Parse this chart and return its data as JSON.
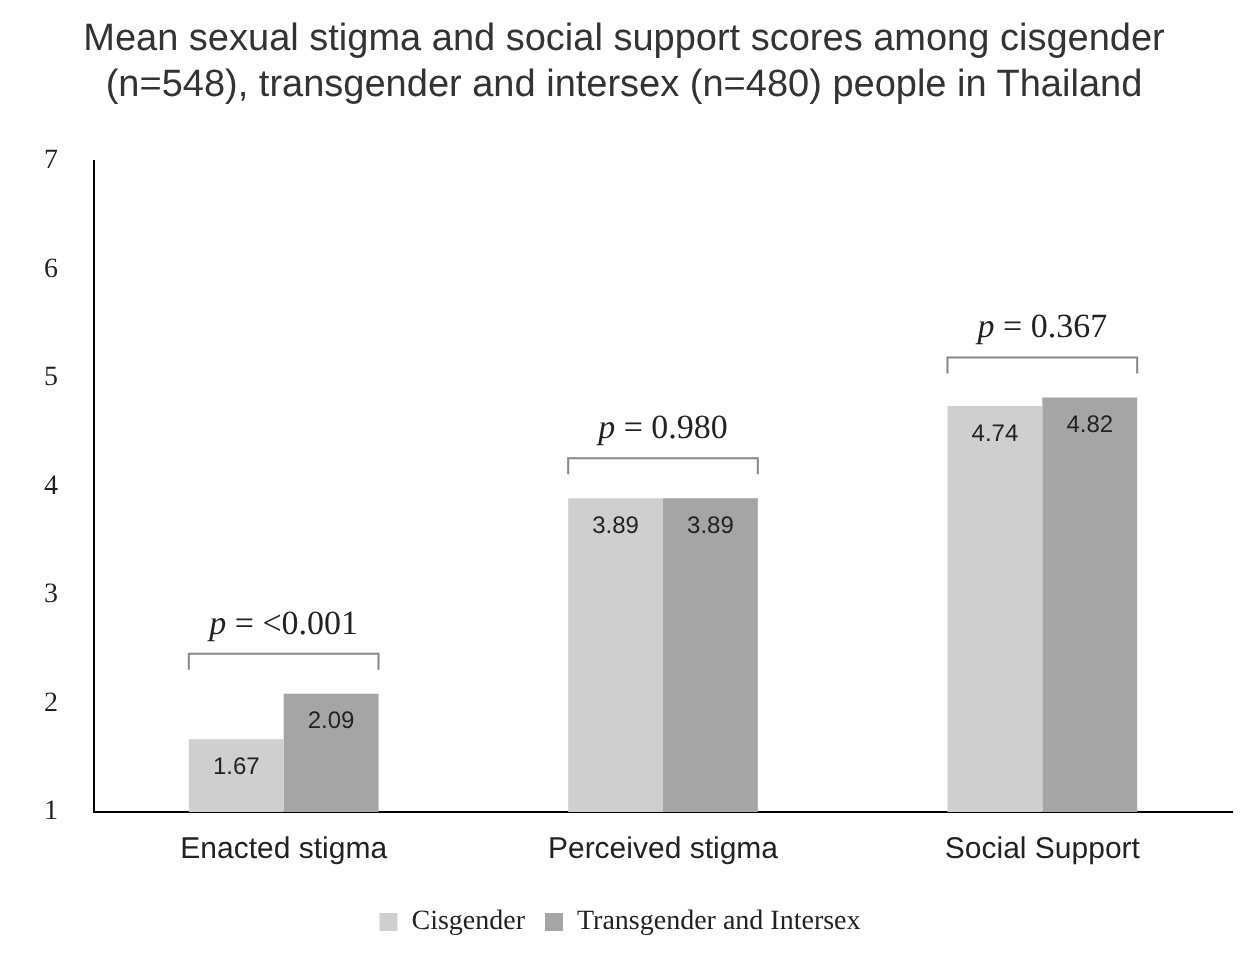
{
  "chart_data": {
    "type": "bar",
    "title": "Mean sexual stigma and social support scores among cisgender (n=548), transgender and intersex (n=480) people in Thailand",
    "categories": [
      "Enacted stigma",
      "Perceived stigma",
      "Social Support"
    ],
    "series": [
      {
        "name": "Cisgender",
        "color": "#cfcfcf",
        "values": [
          1.67,
          3.89,
          4.74
        ]
      },
      {
        "name": "Transgender and Intersex",
        "color": "#a5a5a5",
        "values": [
          2.09,
          3.89,
          4.82
        ]
      }
    ],
    "ylim": [
      1,
      7
    ],
    "yticks": [
      1,
      2,
      3,
      4,
      5,
      6,
      7
    ],
    "grid": false,
    "legend": "bottom",
    "data_labels": true,
    "annotations": [
      "p = <0.001",
      "p = 0.980",
      "p = 0.367"
    ]
  }
}
